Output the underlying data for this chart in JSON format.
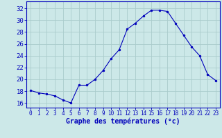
{
  "hours": [
    0,
    1,
    2,
    3,
    4,
    5,
    6,
    7,
    8,
    9,
    10,
    11,
    12,
    13,
    14,
    15,
    16,
    17,
    18,
    19,
    20,
    21,
    22,
    23
  ],
  "temps": [
    18.1,
    17.7,
    17.5,
    17.2,
    16.5,
    16.0,
    19.0,
    19.0,
    20.0,
    21.5,
    23.5,
    25.0,
    28.5,
    29.5,
    30.7,
    31.7,
    31.7,
    31.5,
    29.5,
    27.5,
    25.5,
    24.0,
    20.8,
    19.8
  ],
  "line_color": "#0000bb",
  "marker": "o",
  "marker_size": 2.0,
  "bg_color": "#cce8e8",
  "grid_color": "#aacccc",
  "xlabel": "Graphe des températures (°c)",
  "xlabel_color": "#0000bb",
  "xlabel_fontsize": 7,
  "tick_color": "#0000bb",
  "ytick_fontsize": 6.5,
  "xtick_fontsize": 5.5,
  "ytick_min": 16,
  "ytick_max": 32,
  "ytick_step": 2,
  "xtick_labels": [
    "0",
    "1",
    "2",
    "3",
    "4",
    "5",
    "6",
    "7",
    "8",
    "9",
    "10",
    "11",
    "12",
    "13",
    "14",
    "15",
    "16",
    "17",
    "18",
    "19",
    "20",
    "21",
    "22",
    "23"
  ],
  "xlim": [
    -0.5,
    23.5
  ],
  "ylim": [
    15.2,
    33.2
  ]
}
